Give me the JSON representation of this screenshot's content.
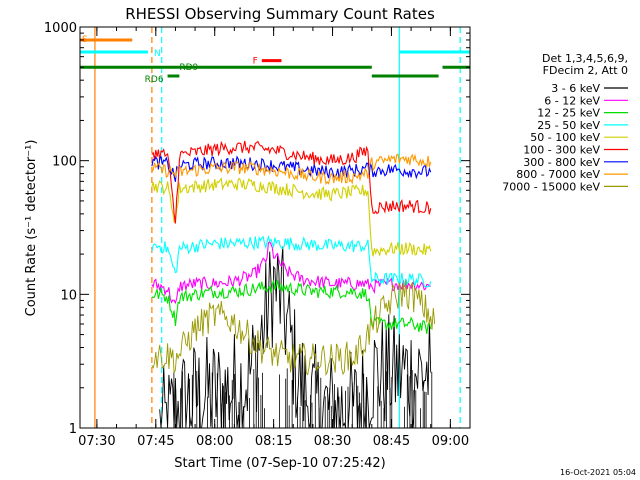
{
  "chart_data": {
    "type": "line",
    "title": "RHESSI Observing Summary Count Rates",
    "xlabel": "Start Time (07-Sep-10 07:25:42)",
    "ylabel": "Count Rate (s⁻¹ detector⁻¹)",
    "yscale": "log",
    "ylim": [
      1,
      1000
    ],
    "xlim": [
      "07:25:42",
      "09:05:00"
    ],
    "x_ticks": [
      "07:30",
      "07:45",
      "08:00",
      "08:15",
      "08:30",
      "08:45",
      "09:00"
    ],
    "y_ticks": [
      "1",
      "10",
      "100",
      "1000"
    ],
    "grid": false,
    "legend_placement": "right",
    "legend_header": [
      "Det 1,3,4,5,6,9,",
      "FDecim 2, Att 0"
    ],
    "timestamp": "16-Oct-2021 05:04",
    "series": [
      {
        "name": "3 - 6 keV",
        "color": "#000000",
        "points": [
          [
            "07:46",
            1
          ],
          [
            "07:48",
            1.1
          ],
          [
            "07:52",
            1.5
          ],
          [
            "07:55",
            1.7
          ],
          [
            "07:58",
            1.8
          ],
          [
            "08:02",
            1.8
          ],
          [
            "08:05",
            2
          ],
          [
            "08:08",
            2.3
          ],
          [
            "08:10",
            3
          ],
          [
            "08:12",
            5
          ],
          [
            "08:14",
            9
          ],
          [
            "08:15",
            12
          ],
          [
            "08:17",
            9
          ],
          [
            "08:19",
            5
          ],
          [
            "08:21",
            2.5
          ],
          [
            "08:24",
            1.6
          ],
          [
            "08:28",
            1.4
          ],
          [
            "08:32",
            1.4
          ],
          [
            "08:36",
            1.4
          ],
          [
            "08:39",
            2
          ],
          [
            "08:40",
            2.6
          ],
          [
            "08:44",
            2.6
          ],
          [
            "08:48",
            2.6
          ],
          [
            "08:52",
            2.6
          ],
          [
            "08:55",
            2.6
          ]
        ]
      },
      {
        "name": "6 - 12 keV",
        "color": "#ff00ff",
        "points": [
          [
            "07:44",
            12
          ],
          [
            "07:46",
            11.5
          ],
          [
            "07:48",
            11
          ],
          [
            "07:50",
            8
          ],
          [
            "07:51",
            11.5
          ],
          [
            "07:55",
            12
          ],
          [
            "08:00",
            12
          ],
          [
            "08:05",
            12.5
          ],
          [
            "08:10",
            14
          ],
          [
            "08:13",
            18
          ],
          [
            "08:14",
            24
          ],
          [
            "08:15",
            20
          ],
          [
            "08:18",
            15
          ],
          [
            "08:22",
            13
          ],
          [
            "08:26",
            12.5
          ],
          [
            "08:30",
            12
          ],
          [
            "08:34",
            12
          ],
          [
            "08:38",
            12
          ],
          [
            "08:40",
            11.5
          ],
          [
            "08:45",
            12
          ],
          [
            "08:50",
            12
          ],
          [
            "08:55",
            11.5
          ]
        ]
      },
      {
        "name": "12 - 25 keV",
        "color": "#00e000",
        "points": [
          [
            "07:44",
            10
          ],
          [
            "07:46",
            10
          ],
          [
            "07:48",
            9.5
          ],
          [
            "07:50",
            6.5
          ],
          [
            "07:51",
            9.5
          ],
          [
            "07:55",
            10
          ],
          [
            "08:00",
            10.5
          ],
          [
            "08:05",
            10.5
          ],
          [
            "08:10",
            11
          ],
          [
            "08:15",
            11.5
          ],
          [
            "08:20",
            11
          ],
          [
            "08:25",
            10.5
          ],
          [
            "08:30",
            10.5
          ],
          [
            "08:35",
            10.5
          ],
          [
            "08:39",
            10
          ],
          [
            "08:40",
            6
          ],
          [
            "08:45",
            6
          ],
          [
            "08:50",
            6
          ],
          [
            "08:55",
            5.5
          ]
        ]
      },
      {
        "name": "25 - 50 keV",
        "color": "#00ffff",
        "points": [
          [
            "07:44",
            23
          ],
          [
            "07:46",
            23
          ],
          [
            "07:48",
            22
          ],
          [
            "07:50",
            14
          ],
          [
            "07:51",
            22
          ],
          [
            "07:55",
            23
          ],
          [
            "08:00",
            24
          ],
          [
            "08:05",
            24
          ],
          [
            "08:10",
            24.5
          ],
          [
            "08:15",
            24.5
          ],
          [
            "08:20",
            24
          ],
          [
            "08:25",
            23.5
          ],
          [
            "08:30",
            23
          ],
          [
            "08:35",
            23
          ],
          [
            "08:39",
            23
          ],
          [
            "08:40",
            13
          ],
          [
            "08:45",
            13
          ],
          [
            "08:50",
            13
          ],
          [
            "08:55",
            12.5
          ]
        ]
      },
      {
        "name": "50 - 100 keV",
        "color": "#d0d000",
        "points": [
          [
            "07:44",
            65
          ],
          [
            "07:46",
            64
          ],
          [
            "07:48",
            63
          ],
          [
            "07:50",
            35
          ],
          [
            "07:51",
            62
          ],
          [
            "07:55",
            64
          ],
          [
            "08:00",
            66
          ],
          [
            "08:05",
            67
          ],
          [
            "08:10",
            66
          ],
          [
            "08:15",
            63
          ],
          [
            "08:20",
            60
          ],
          [
            "08:25",
            57
          ],
          [
            "08:30",
            56
          ],
          [
            "08:35",
            58
          ],
          [
            "08:39",
            60
          ],
          [
            "08:40",
            21
          ],
          [
            "08:45",
            22
          ],
          [
            "08:50",
            22
          ],
          [
            "08:55",
            21
          ]
        ]
      },
      {
        "name": "100 - 300 keV",
        "color": "#ff0000",
        "points": [
          [
            "07:44",
            115
          ],
          [
            "07:46",
            113
          ],
          [
            "07:48",
            110
          ],
          [
            "07:50",
            34
          ],
          [
            "07:51",
            110
          ],
          [
            "07:55",
            115
          ],
          [
            "08:00",
            122
          ],
          [
            "08:05",
            126
          ],
          [
            "08:10",
            125
          ],
          [
            "08:15",
            120
          ],
          [
            "08:20",
            112
          ],
          [
            "08:25",
            104
          ],
          [
            "08:30",
            100
          ],
          [
            "08:35",
            105
          ],
          [
            "08:39",
            120
          ],
          [
            "08:40",
            44
          ],
          [
            "08:45",
            46
          ],
          [
            "08:50",
            46
          ],
          [
            "08:55",
            44
          ]
        ]
      },
      {
        "name": "300 - 800 keV",
        "color": "#0000ff",
        "points": [
          [
            "07:44",
            98
          ],
          [
            "07:46",
            96
          ],
          [
            "07:48",
            94
          ],
          [
            "07:50",
            75
          ],
          [
            "07:51",
            92
          ],
          [
            "07:55",
            94
          ],
          [
            "08:00",
            96
          ],
          [
            "08:05",
            96
          ],
          [
            "08:10",
            95
          ],
          [
            "08:15",
            92
          ],
          [
            "08:20",
            88
          ],
          [
            "08:25",
            84
          ],
          [
            "08:30",
            82
          ],
          [
            "08:35",
            84
          ],
          [
            "08:39",
            88
          ],
          [
            "08:40",
            84
          ],
          [
            "08:45",
            86
          ],
          [
            "08:50",
            84
          ],
          [
            "08:55",
            82
          ]
        ]
      },
      {
        "name": "800 - 7000 keV",
        "color": "#ff9900",
        "points": [
          [
            "07:44",
            88
          ],
          [
            "07:46",
            86
          ],
          [
            "07:48",
            84
          ],
          [
            "07:50",
            80
          ],
          [
            "07:51",
            82
          ],
          [
            "07:55",
            85
          ],
          [
            "08:00",
            88
          ],
          [
            "08:05",
            89
          ],
          [
            "08:10",
            88
          ],
          [
            "08:15",
            85
          ],
          [
            "08:20",
            80
          ],
          [
            "08:25",
            76
          ],
          [
            "08:30",
            74
          ],
          [
            "08:35",
            76
          ],
          [
            "08:39",
            80
          ],
          [
            "08:40",
            95
          ],
          [
            "08:45",
            102
          ],
          [
            "08:50",
            104
          ],
          [
            "08:55",
            98
          ]
        ]
      },
      {
        "name": "7000 - 15000 keV",
        "color": "#999900",
        "points": [
          [
            "07:44",
            3.5
          ],
          [
            "07:46",
            3.5
          ],
          [
            "07:48",
            3.5
          ],
          [
            "07:50",
            3.3
          ],
          [
            "07:52",
            4
          ],
          [
            "07:55",
            5.5
          ],
          [
            "07:58",
            6.5
          ],
          [
            "08:00",
            7
          ],
          [
            "08:04",
            6.5
          ],
          [
            "08:08",
            5
          ],
          [
            "08:12",
            4
          ],
          [
            "08:16",
            3.5
          ],
          [
            "08:20",
            3.3
          ],
          [
            "08:24",
            3.3
          ],
          [
            "08:28",
            3.3
          ],
          [
            "08:32",
            3.3
          ],
          [
            "08:36",
            3.5
          ],
          [
            "08:39",
            5
          ],
          [
            "08:42",
            7
          ],
          [
            "08:45",
            9
          ],
          [
            "08:48",
            10.5
          ],
          [
            "08:51",
            9.5
          ],
          [
            "08:54",
            7.5
          ],
          [
            "08:56",
            6
          ]
        ]
      }
    ],
    "annotations": [
      {
        "label": "S",
        "color": "#ff8000",
        "y": 800,
        "x_start": "07:25:42",
        "x_end": "07:39:00"
      },
      {
        "label": "N",
        "color": "#00ffff",
        "y": 650,
        "x_start": "07:25:42",
        "x_end": "07:43:00"
      },
      {
        "label": "N",
        "color": "#00ffff",
        "y": 650,
        "x_start": "08:47:00",
        "x_end": "09:05:00",
        "no_label": true
      },
      {
        "label": "F",
        "color": "#ff0000",
        "y": 560,
        "x_start": "08:12:00",
        "x_end": "08:17:00"
      },
      {
        "label": "RD9",
        "color": "#008000",
        "y": 500,
        "x_start": "07:25:42",
        "x_end": "08:40:00"
      },
      {
        "label": "RD6",
        "color": "#008000",
        "y": 430,
        "x_start": "07:48:00",
        "x_end": "07:51:00"
      },
      {
        "label": "",
        "color": "#008000",
        "y": 430,
        "x_start": "08:40:00",
        "x_end": "08:57:00",
        "no_label": true
      },
      {
        "label": "",
        "color": "#008000",
        "y": 500,
        "x_start": "08:58:00",
        "x_end": "09:05:00",
        "no_label": true
      }
    ],
    "vertical_lines": [
      {
        "x": "07:29:30",
        "color": "#ff8000",
        "style": "solid"
      },
      {
        "x": "07:44:00",
        "color": "#ff8000",
        "style": "dashed"
      },
      {
        "x": "07:46:30",
        "color": "#00ffff",
        "style": "dashed"
      },
      {
        "x": "08:47:00",
        "color": "#00ffff",
        "style": "solid"
      },
      {
        "x": "09:02:30",
        "color": "#00ffff",
        "style": "dashed"
      }
    ]
  }
}
